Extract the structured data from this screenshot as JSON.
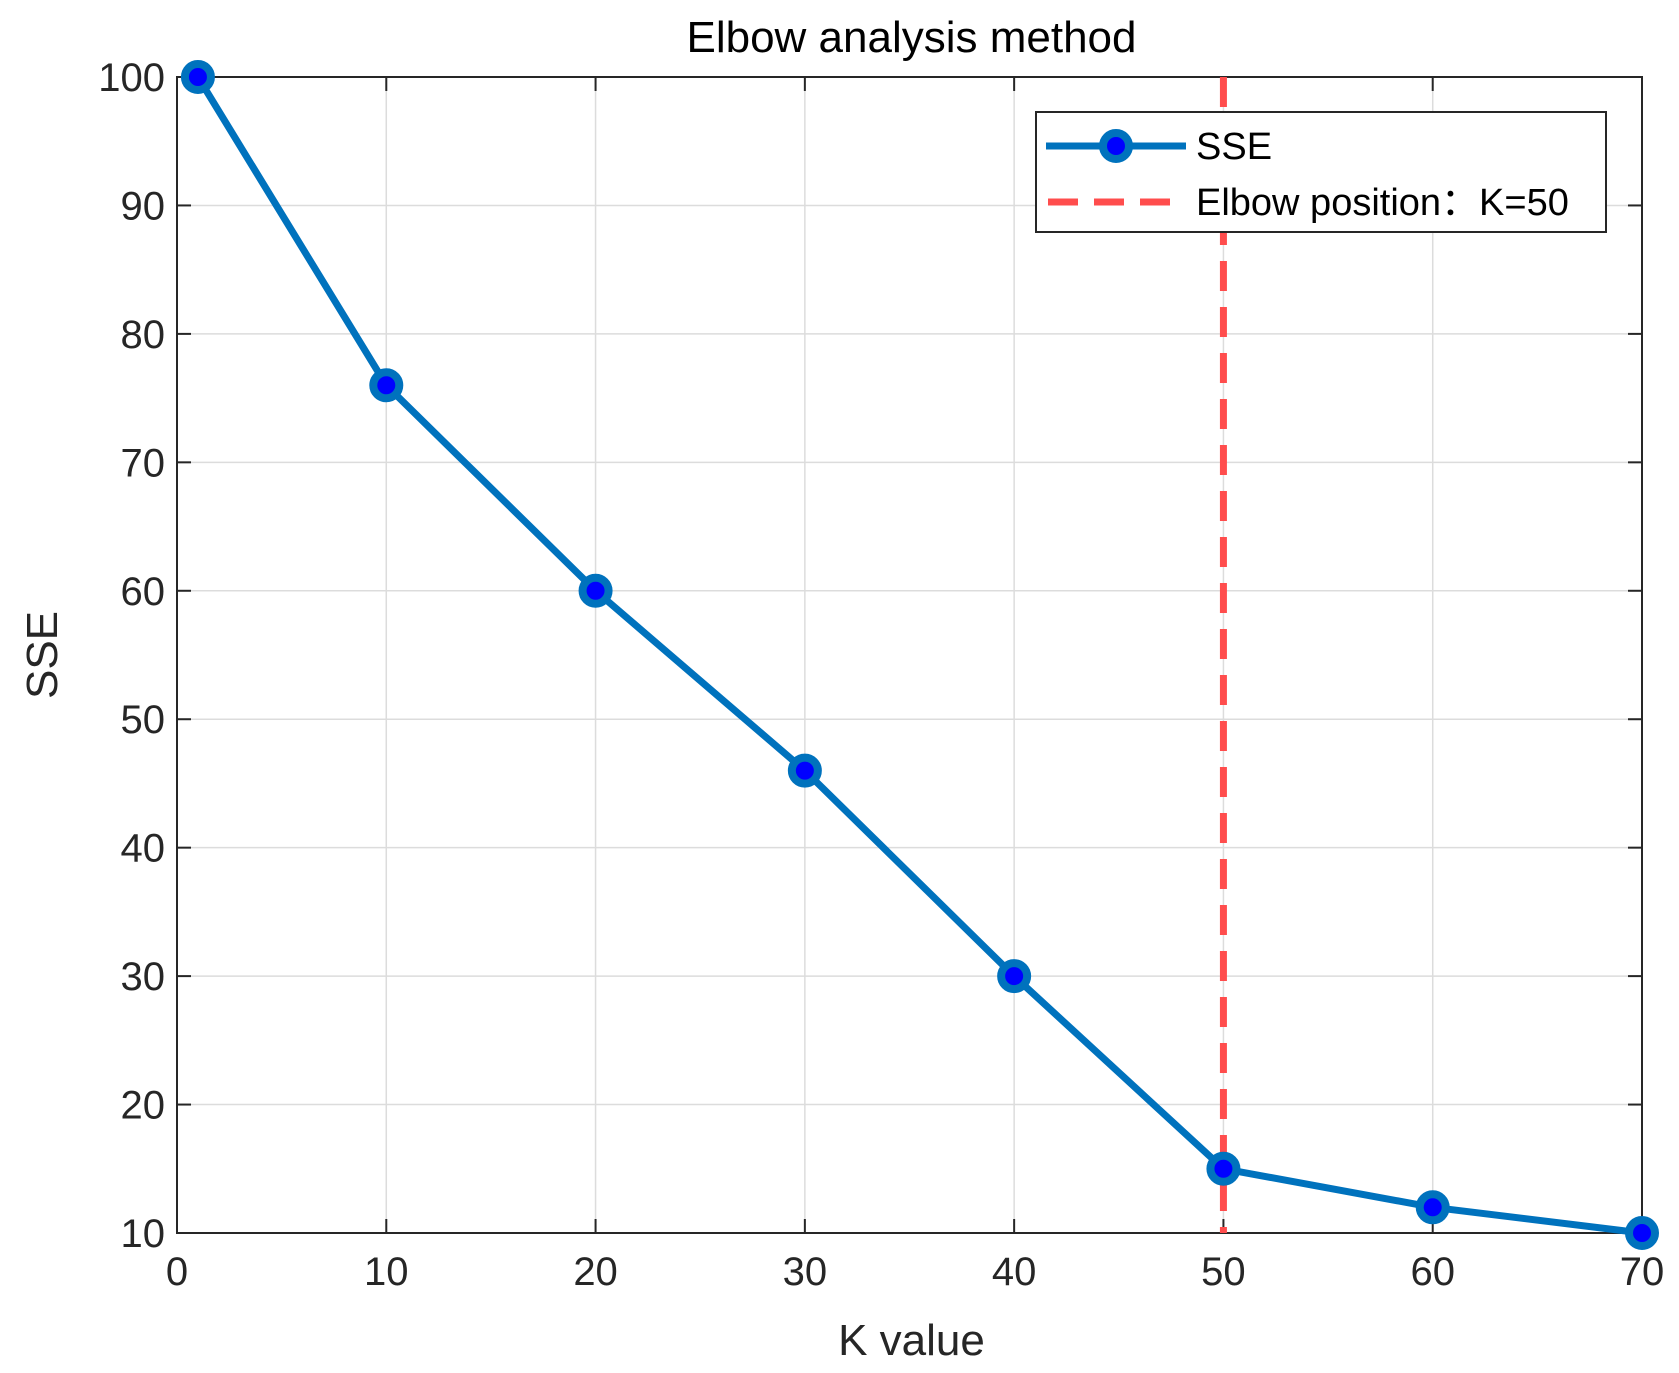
{
  "chart_data": {
    "type": "line",
    "title": "Elbow analysis method",
    "xlabel": "K value",
    "ylabel": "SSE",
    "xlim": [
      0,
      70
    ],
    "ylim": [
      10,
      100
    ],
    "xticks": [
      0,
      10,
      20,
      30,
      40,
      50,
      60,
      70
    ],
    "yticks": [
      10,
      20,
      30,
      40,
      50,
      60,
      70,
      80,
      90,
      100
    ],
    "grid": true,
    "legend_position": "top-right",
    "series": [
      {
        "name": "SSE",
        "color": "#0072BD",
        "marker_fill": "#0000FF",
        "x": [
          1,
          10,
          20,
          30,
          40,
          50,
          60,
          70
        ],
        "y": [
          100,
          76,
          60,
          46,
          30,
          15,
          12,
          10
        ]
      }
    ],
    "reference_lines": [
      {
        "name": "Elbow position：K=50",
        "orientation": "vertical",
        "x": 50,
        "color": "#FF4D4D",
        "style": "dashed"
      }
    ]
  }
}
